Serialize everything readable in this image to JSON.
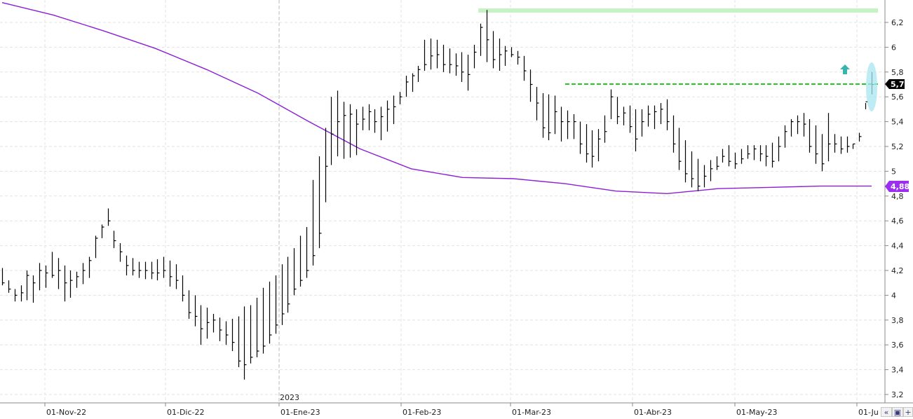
{
  "chart_data": {
    "type": "ohlc",
    "title": "",
    "xlabel": "",
    "ylabel": "",
    "ylim": [
      3.1,
      6.3
    ],
    "y_ticks": [
      "3,2",
      "3,4",
      "3,6",
      "3,8",
      "4",
      "4,2",
      "4,4",
      "4,6",
      "4,8",
      "5",
      "5,2",
      "5,4",
      "5,6",
      "5,8",
      "6",
      "6,2"
    ],
    "x_ticks": [
      "01-Nov-22",
      "01-Dic-22",
      "01-Ene-23",
      "01-Feb-23",
      "01-Mar-23",
      "01-Abr-23",
      "01-May-23",
      "01-Ju"
    ],
    "year_label": "2023",
    "grid": true,
    "price_tag": "5,7",
    "ma_tag": "4,88",
    "series": [
      {
        "kind": "price-bars",
        "highs": [
          4.22,
          4.12,
          4.05,
          4.08,
          4.2,
          4.16,
          4.26,
          4.24,
          4.35,
          4.3,
          4.24,
          4.2,
          4.19,
          4.26,
          4.31,
          4.48,
          4.57,
          4.7,
          4.52,
          4.42,
          4.32,
          4.3,
          4.27,
          4.27,
          4.27,
          4.29,
          4.31,
          4.28,
          4.25,
          4.16,
          4.04,
          4.0,
          3.92,
          3.9,
          3.85,
          3.82,
          3.79,
          3.81,
          3.83,
          3.91,
          3.92,
          3.98,
          4.06,
          4.11,
          4.16,
          4.25,
          4.31,
          4.38,
          4.48,
          4.55,
          4.93,
          5.12,
          5.35,
          5.6,
          5.65,
          5.56,
          5.54,
          5.5,
          5.52,
          5.54,
          5.5,
          5.52,
          5.57,
          5.61,
          5.64,
          5.77,
          5.79,
          5.85,
          6.06,
          6.07,
          6.06,
          6.02,
          5.99,
          5.95,
          5.96,
          5.94,
          6.02,
          6.19,
          6.3,
          6.13,
          6.07,
          6.01,
          6.0,
          5.97,
          5.93,
          5.82,
          5.68,
          5.63,
          5.62,
          5.61,
          5.52,
          5.49,
          5.46,
          5.4,
          5.38,
          5.33,
          5.34,
          5.45,
          5.66,
          5.6,
          5.52,
          5.53,
          5.5,
          5.5,
          5.53,
          5.53,
          5.55,
          5.58,
          5.45,
          5.35,
          5.25,
          5.16,
          5.1,
          5.05,
          5.09,
          5.12,
          5.18,
          5.21,
          5.15,
          5.18,
          5.21,
          5.21,
          5.21,
          5.21,
          5.23,
          5.28,
          5.37,
          5.42,
          5.45,
          5.47,
          5.42,
          5.37,
          5.3,
          5.47,
          5.3,
          5.28,
          5.28,
          5.22,
          5.31,
          5.55,
          5.8
        ],
        "lows": [
          4.08,
          4.02,
          3.95,
          3.95,
          3.96,
          3.94,
          4.04,
          4.06,
          4.14,
          4.05,
          3.95,
          3.98,
          4.06,
          4.09,
          4.14,
          4.3,
          4.46,
          4.56,
          4.38,
          4.27,
          4.16,
          4.16,
          4.14,
          4.13,
          4.13,
          4.12,
          4.14,
          4.07,
          4.05,
          3.95,
          3.81,
          3.75,
          3.6,
          3.65,
          3.7,
          3.63,
          3.6,
          3.55,
          3.42,
          3.32,
          3.45,
          3.5,
          3.53,
          3.61,
          3.69,
          3.76,
          3.86,
          4.0,
          4.07,
          4.14,
          4.24,
          4.38,
          4.75,
          5.05,
          5.12,
          5.1,
          5.11,
          5.13,
          5.33,
          5.33,
          5.31,
          5.25,
          5.32,
          5.38,
          5.54,
          5.6,
          5.64,
          5.72,
          5.81,
          5.82,
          5.83,
          5.8,
          5.79,
          5.77,
          5.72,
          5.65,
          5.83,
          5.93,
          5.88,
          5.83,
          5.81,
          5.85,
          5.92,
          5.86,
          5.73,
          5.56,
          5.41,
          5.27,
          5.25,
          5.3,
          5.24,
          5.26,
          5.26,
          5.14,
          5.07,
          5.03,
          5.08,
          5.23,
          5.42,
          5.38,
          5.37,
          5.31,
          5.16,
          5.28,
          5.36,
          5.34,
          5.38,
          5.33,
          5.15,
          5.01,
          4.91,
          4.87,
          4.84,
          4.87,
          4.92,
          5.01,
          5.07,
          5.04,
          5.02,
          5.06,
          5.1,
          5.09,
          5.08,
          5.04,
          5.03,
          5.08,
          5.19,
          5.28,
          5.3,
          5.28,
          5.15,
          5.06,
          5.0,
          5.08,
          5.15,
          5.14,
          5.15,
          5.18,
          5.24,
          5.5,
          5.62
        ],
        "closes": [
          4.1,
          4.05,
          4.0,
          4.02,
          4.16,
          4.1,
          4.2,
          4.18,
          4.16,
          4.2,
          4.1,
          4.12,
          4.15,
          4.2,
          4.28,
          4.46,
          4.55,
          4.6,
          4.44,
          4.35,
          4.24,
          4.2,
          4.2,
          4.2,
          4.18,
          4.18,
          4.2,
          4.15,
          4.12,
          4.0,
          3.86,
          3.83,
          3.73,
          3.78,
          3.8,
          3.72,
          3.68,
          3.62,
          3.47,
          3.44,
          3.5,
          3.55,
          3.59,
          3.68,
          3.76,
          3.85,
          3.93,
          4.05,
          4.12,
          4.2,
          4.32,
          4.5,
          5.04,
          5.3,
          5.4,
          5.45,
          5.46,
          5.38,
          5.42,
          5.48,
          5.4,
          5.44,
          5.5,
          5.52,
          5.6,
          5.72,
          5.77,
          5.82,
          5.86,
          5.93,
          5.94,
          5.86,
          5.86,
          5.85,
          5.8,
          5.78,
          5.96,
          6.16,
          6.06,
          5.9,
          5.94,
          5.97,
          5.94,
          5.92,
          5.81,
          5.7,
          5.55,
          5.35,
          5.31,
          5.48,
          5.4,
          5.4,
          5.4,
          5.22,
          5.14,
          5.12,
          5.26,
          5.32,
          5.6,
          5.44,
          5.47,
          5.36,
          5.26,
          5.4,
          5.46,
          5.48,
          5.5,
          5.4,
          5.22,
          5.08,
          4.98,
          4.94,
          4.88,
          4.96,
          5.02,
          5.04,
          5.12,
          5.08,
          5.06,
          5.1,
          5.14,
          5.18,
          5.14,
          5.12,
          5.08,
          5.2,
          5.32,
          5.4,
          5.4,
          5.38,
          5.2,
          5.14,
          5.06,
          5.22,
          5.22,
          5.18,
          5.2,
          5.22,
          5.28,
          5.56,
          5.7
        ]
      },
      {
        "kind": "moving-average",
        "color": "#8b1fd6",
        "points": [
          [
            0,
            6.36
          ],
          [
            10,
            6.26
          ],
          [
            20,
            6.13
          ],
          [
            30,
            5.99
          ],
          [
            40,
            5.82
          ],
          [
            50,
            5.63
          ],
          [
            60,
            5.4
          ],
          [
            70,
            5.18
          ],
          [
            80,
            5.02
          ],
          [
            90,
            4.95
          ],
          [
            100,
            4.94
          ],
          [
            110,
            4.9
          ],
          [
            120,
            4.84
          ],
          [
            130,
            4.82
          ],
          [
            140,
            4.86
          ],
          [
            150,
            4.87
          ],
          [
            160,
            4.88
          ],
          [
            170,
            4.88
          ]
        ]
      }
    ],
    "colors": {
      "resistance": "#c6f2c4",
      "breakout_line": "#22c922",
      "moving_average": "#8b1fd6",
      "signal_arrow": "#38b4ae",
      "highlight": "#a8e6f0",
      "price_tag_bg": "#000000",
      "ma_tag_bg": "#9b2ff0"
    }
  },
  "toolbar": {
    "left_icon": "scroll-left-icon",
    "save_icon": "save-icon",
    "add_icon": "add-icon"
  }
}
